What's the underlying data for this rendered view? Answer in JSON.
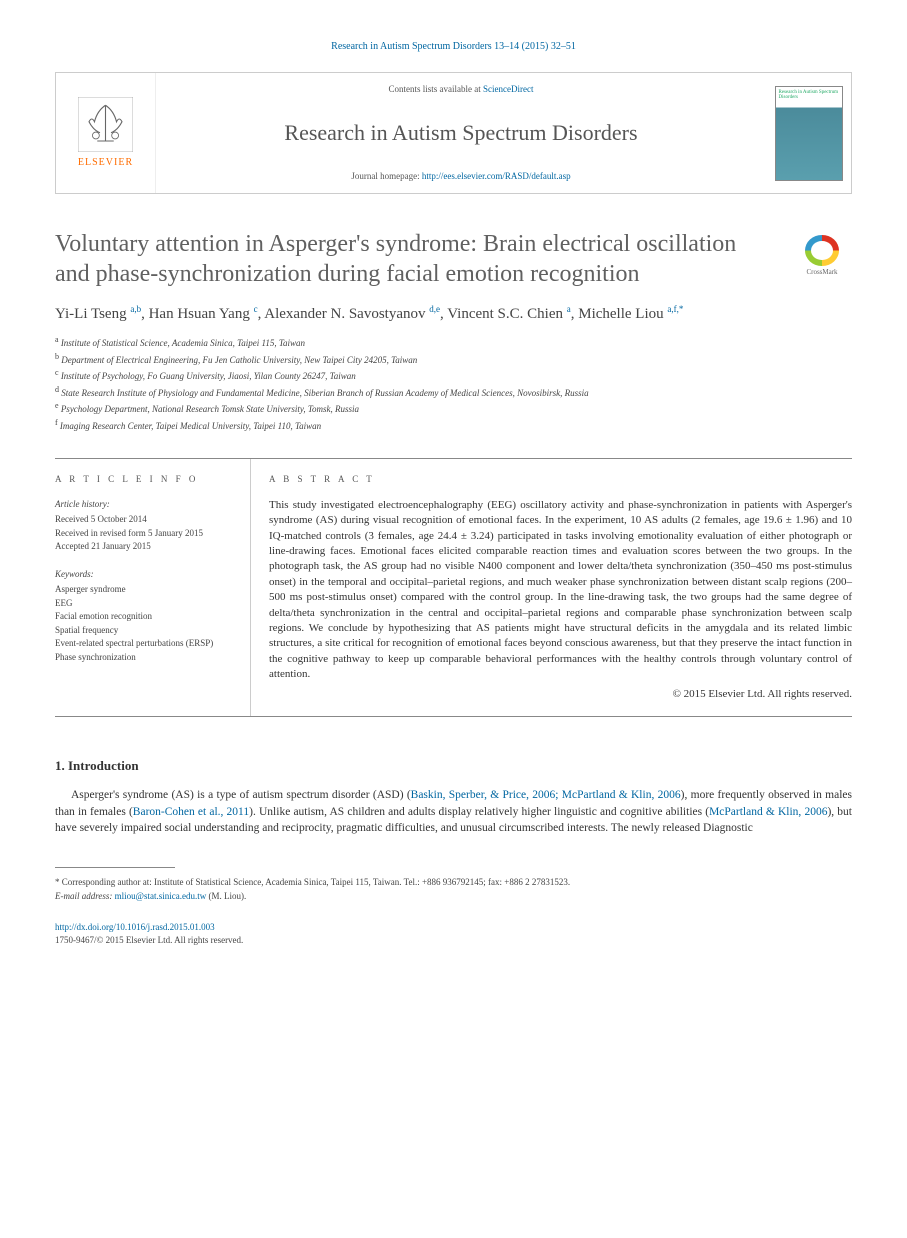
{
  "citation": "Research in Autism Spectrum Disorders 13–14 (2015) 32–51",
  "header": {
    "contents_prefix": "Contents lists available at ",
    "contents_link": "ScienceDirect",
    "journal_name": "Research in Autism Spectrum Disorders",
    "homepage_prefix": "Journal homepage: ",
    "homepage_url": "http://ees.elsevier.com/RASD/default.asp",
    "elsevier": "ELSEVIER",
    "cover_title": "Research in Autism Spectrum Disorders"
  },
  "crossmark": "CrossMark",
  "title": "Voluntary attention in Asperger's syndrome: Brain electrical oscillation and phase-synchronization during facial emotion recognition",
  "authors_html": "Yi-Li Tseng <sup>a,b</sup>, Han Hsuan Yang <sup>c</sup>, Alexander N. Savostyanov <sup>d,e</sup>, Vincent S.C. Chien <sup>a</sup>, Michelle Liou <sup>a,f,*</sup>",
  "affiliations": [
    {
      "sup": "a",
      "text": "Institute of Statistical Science, Academia Sinica, Taipei 115, Taiwan"
    },
    {
      "sup": "b",
      "text": "Department of Electrical Engineering, Fu Jen Catholic University, New Taipei City 24205, Taiwan"
    },
    {
      "sup": "c",
      "text": "Institute of Psychology, Fo Guang University, Jiaosi, Yilan County 26247, Taiwan"
    },
    {
      "sup": "d",
      "text": "State Research Institute of Physiology and Fundamental Medicine, Siberian Branch of Russian Academy of Medical Sciences, Novosibirsk, Russia"
    },
    {
      "sup": "e",
      "text": "Psychology Department, National Research Tomsk State University, Tomsk, Russia"
    },
    {
      "sup": "f",
      "text": "Imaging Research Center, Taipei Medical University, Taipei 110, Taiwan"
    }
  ],
  "article_info": {
    "heading": "A R T I C L E   I N F O",
    "history_label": "Article history:",
    "history": [
      "Received 5 October 2014",
      "Received in revised form 5 January 2015",
      "Accepted 21 January 2015"
    ],
    "keywords_label": "Keywords:",
    "keywords": [
      "Asperger syndrome",
      "EEG",
      "Facial emotion recognition",
      "Spatial frequency",
      "Event-related spectral perturbations (ERSP)",
      "Phase synchronization"
    ]
  },
  "abstract": {
    "heading": "A B S T R A C T",
    "text": "This study investigated electroencephalography (EEG) oscillatory activity and phase-synchronization in patients with Asperger's syndrome (AS) during visual recognition of emotional faces. In the experiment, 10 AS adults (2 females, age 19.6 ± 1.96) and 10 IQ-matched controls (3 females, age 24.4 ± 3.24) participated in tasks involving emotionality evaluation of either photograph or line-drawing faces. Emotional faces elicited comparable reaction times and evaluation scores between the two groups. In the photograph task, the AS group had no visible N400 component and lower delta/theta synchronization (350–450 ms post-stimulus onset) in the temporal and occipital–parietal regions, and much weaker phase synchronization between distant scalp regions (200–500 ms post-stimulus onset) compared with the control group. In the line-drawing task, the two groups had the same degree of delta/theta synchronization in the central and occipital–parietal regions and comparable phase synchronization between scalp regions. We conclude by hypothesizing that AS patients might have structural deficits in the amygdala and its related limbic structures, a site critical for recognition of emotional faces beyond conscious awareness, but that they preserve the intact function in the cognitive pathway to keep up comparable behavioral performances with the healthy controls through voluntary control of attention.",
    "copyright": "© 2015 Elsevier Ltd. All rights reserved."
  },
  "section1": {
    "heading": "1. Introduction",
    "body_html": "Asperger's syndrome (AS) is a type of autism spectrum disorder (ASD) (<a href='#'>Baskin, Sperber, & Price, 2006; McPartland & Klin, 2006</a>), more frequently observed in males than in females (<a href='#'>Baron-Cohen et al., 2011</a>). Unlike autism, AS children and adults display relatively higher linguistic and cognitive abilities (<a href='#'>McPartland & Klin, 2006</a>), but have severely impaired social understanding and reciprocity, pragmatic difficulties, and unusual circumscribed interests. The newly released Diagnostic"
  },
  "corresponding": {
    "text": "* Corresponding author at: Institute of Statistical Science, Academia Sinica, Taipei 115, Taiwan. Tel.: +886 936792145; fax: +886 2 27831523.",
    "email_label": "E-mail address: ",
    "email": "mliou@stat.sinica.edu.tw",
    "email_suffix": " (M. Liou)."
  },
  "doi": {
    "url": "http://dx.doi.org/10.1016/j.rasd.2015.01.003",
    "issn_line": "1750-9467/© 2015 Elsevier Ltd. All rights reserved."
  },
  "colors": {
    "link": "#0066a1",
    "elsevier_orange": "#ff6c00",
    "heading_gray": "#606060"
  }
}
